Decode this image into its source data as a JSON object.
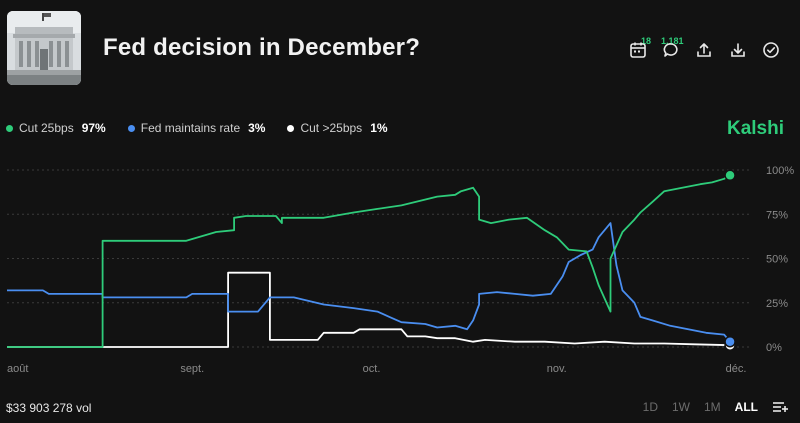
{
  "header": {
    "title": "Fed decision in December?",
    "calendar_count": "18",
    "comments_count": "1,181"
  },
  "legend": [
    {
      "name": "Cut 25bps",
      "pct": "97%",
      "color": "#2ecc7a"
    },
    {
      "name": "Fed maintains rate",
      "pct": "3%",
      "color": "#4a8ef0"
    },
    {
      "name": "Cut >25bps",
      "pct": "1%",
      "color": "#ffffff"
    }
  ],
  "brand": "Kalshi",
  "footer": {
    "volume": "$33 903 278 vol",
    "ranges": [
      "1D",
      "1W",
      "1M",
      "ALL"
    ],
    "active_range": "ALL"
  },
  "chart_data": {
    "type": "line",
    "x_ticks": [
      {
        "label": "août",
        "day": 0
      },
      {
        "label": "sept.",
        "day": 31
      },
      {
        "label": "oct.",
        "day": 61
      },
      {
        "label": "nov.",
        "day": 92
      },
      {
        "label": "déc.",
        "day": 122
      }
    ],
    "y_ticks": [
      "0%",
      "25%",
      "50%",
      "75%",
      "100%"
    ],
    "ylim": [
      0,
      100
    ],
    "xlim": [
      0,
      123
    ],
    "grid": true,
    "series": [
      {
        "name": "Cut 25bps",
        "color": "#2ecc7a",
        "points": [
          [
            0,
            0
          ],
          [
            16,
            0
          ],
          [
            16,
            60
          ],
          [
            30,
            60
          ],
          [
            32,
            62
          ],
          [
            35,
            65
          ],
          [
            38,
            66
          ],
          [
            38,
            73
          ],
          [
            40,
            74
          ],
          [
            45,
            74
          ],
          [
            46,
            70
          ],
          [
            46,
            73
          ],
          [
            53,
            73
          ],
          [
            58,
            76
          ],
          [
            62,
            78
          ],
          [
            66,
            80
          ],
          [
            72,
            85
          ],
          [
            75,
            86
          ],
          [
            76,
            88
          ],
          [
            78,
            90
          ],
          [
            79,
            85
          ],
          [
            79,
            72
          ],
          [
            81,
            70
          ],
          [
            84,
            72
          ],
          [
            87,
            73
          ],
          [
            90,
            66
          ],
          [
            92,
            62
          ],
          [
            94,
            55
          ],
          [
            97,
            54
          ],
          [
            98,
            45
          ],
          [
            99,
            35
          ],
          [
            101,
            20
          ],
          [
            101,
            50
          ],
          [
            103,
            65
          ],
          [
            105,
            72
          ],
          [
            106,
            76
          ],
          [
            108,
            82
          ],
          [
            110,
            88
          ],
          [
            113,
            90
          ],
          [
            116,
            92
          ],
          [
            118,
            93
          ],
          [
            120,
            95
          ],
          [
            121,
            97
          ]
        ]
      },
      {
        "name": "Fed maintains rate",
        "color": "#4a8ef0",
        "points": [
          [
            0,
            32
          ],
          [
            6,
            32
          ],
          [
            7,
            30
          ],
          [
            16,
            30
          ],
          [
            16,
            28
          ],
          [
            25,
            28
          ],
          [
            30,
            28
          ],
          [
            31,
            30
          ],
          [
            37,
            30
          ],
          [
            37,
            20
          ],
          [
            42,
            20
          ],
          [
            44,
            28
          ],
          [
            48,
            28
          ],
          [
            53,
            24
          ],
          [
            58,
            22
          ],
          [
            62,
            20
          ],
          [
            64,
            17
          ],
          [
            66,
            14
          ],
          [
            70,
            13
          ],
          [
            72,
            11
          ],
          [
            75,
            12
          ],
          [
            77,
            10
          ],
          [
            78,
            15
          ],
          [
            79,
            24
          ],
          [
            79,
            30
          ],
          [
            82,
            31
          ],
          [
            85,
            30
          ],
          [
            88,
            29
          ],
          [
            91,
            30
          ],
          [
            93,
            40
          ],
          [
            94,
            48
          ],
          [
            96,
            52
          ],
          [
            98,
            55
          ],
          [
            99,
            62
          ],
          [
            101,
            70
          ],
          [
            102,
            46
          ],
          [
            103,
            32
          ],
          [
            105,
            25
          ],
          [
            106,
            17
          ],
          [
            108,
            15
          ],
          [
            111,
            12
          ],
          [
            114,
            10
          ],
          [
            117,
            8
          ],
          [
            120,
            7
          ],
          [
            121,
            3
          ]
        ]
      },
      {
        "name": "Cut >25bps",
        "color": "#ffffff",
        "points": [
          [
            0,
            0
          ],
          [
            37,
            0
          ],
          [
            37,
            42
          ],
          [
            44,
            42
          ],
          [
            44,
            4
          ],
          [
            52,
            4
          ],
          [
            53,
            8
          ],
          [
            58,
            8
          ],
          [
            59,
            10
          ],
          [
            66,
            10
          ],
          [
            67,
            6
          ],
          [
            70,
            6
          ],
          [
            72,
            5
          ],
          [
            75,
            5
          ],
          [
            78,
            3
          ],
          [
            80,
            4
          ],
          [
            85,
            3
          ],
          [
            90,
            3
          ],
          [
            95,
            2
          ],
          [
            100,
            3
          ],
          [
            105,
            2
          ],
          [
            110,
            2
          ],
          [
            115,
            1.5
          ],
          [
            121,
            1
          ]
        ]
      }
    ]
  }
}
